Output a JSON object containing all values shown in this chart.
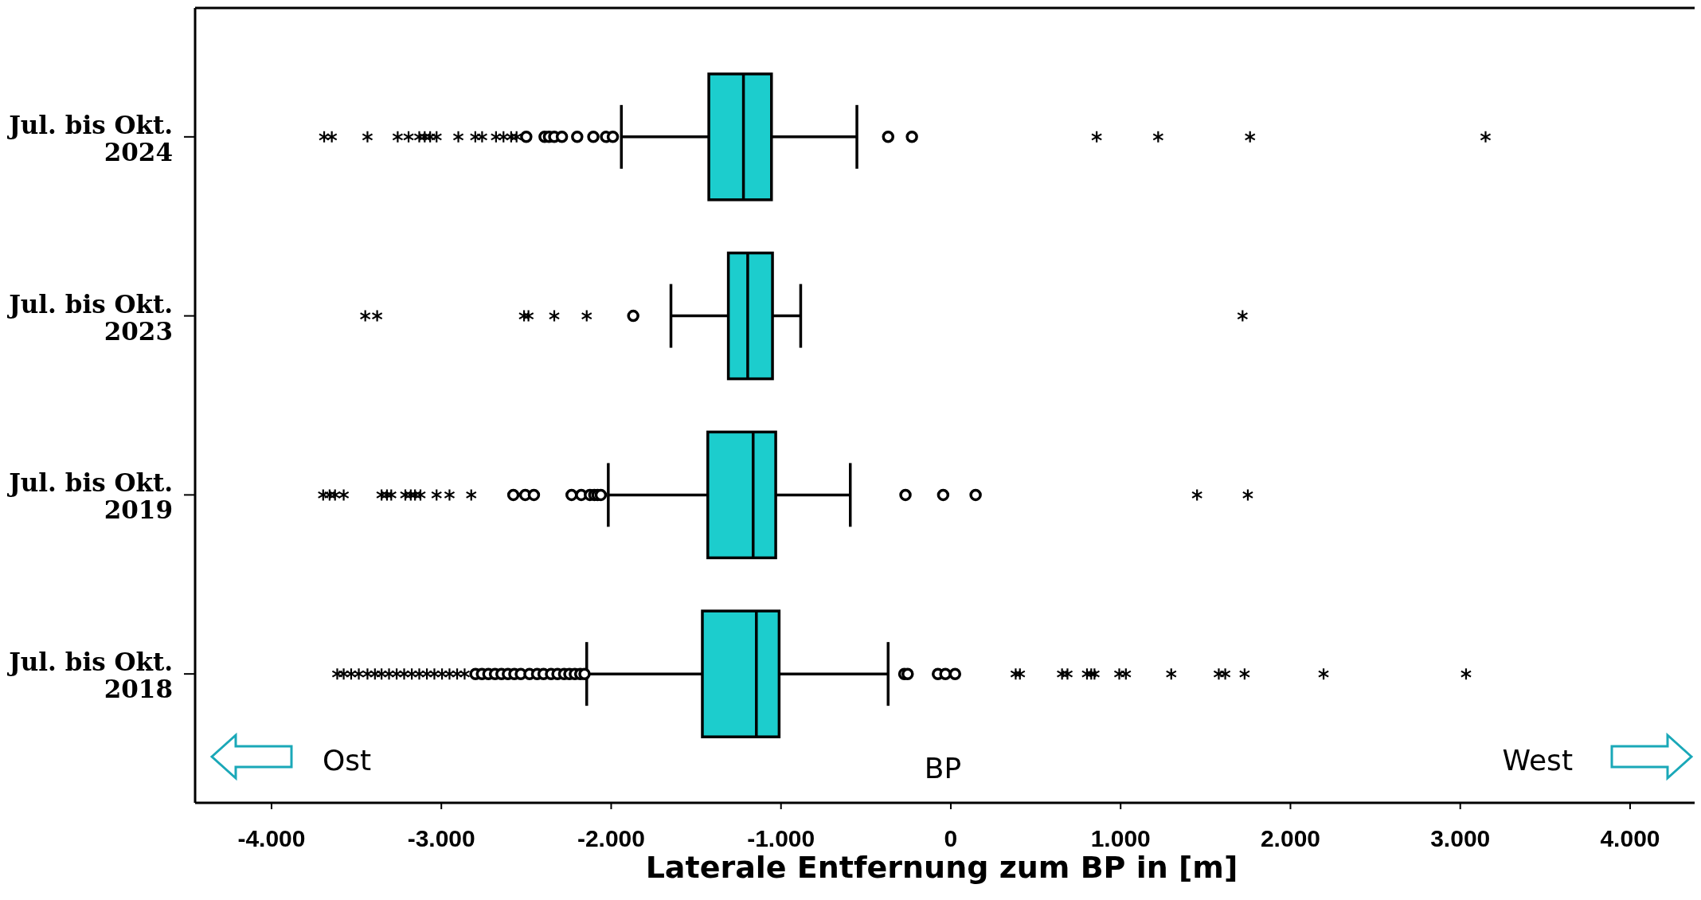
{
  "chart_data": {
    "type": "box",
    "orientation": "horizontal",
    "xlabel": "Laterale Entfernung zum BP in [m]",
    "color": "#1ccdcd",
    "categories": [
      "Jul. bis Okt. 2024",
      "Jul. bis Okt. 2023",
      "Jul. bis Okt. 2019",
      "Jul. bis Okt. 2018"
    ],
    "boxes": [
      {
        "low": -1940,
        "q1": -1425,
        "median": -1221,
        "q3": -1056,
        "high": -553,
        "outliers": [
          -3690,
          -3645,
          -3435,
          -3257,
          -3193,
          -3130,
          -3098,
          -3066,
          -3028,
          -2900,
          -2800,
          -2760,
          -2678,
          -2634,
          -2589,
          -2557,
          -2500,
          -2392,
          -2366,
          -2335,
          -2290,
          -2200,
          -2105,
          -2030,
          -1990,
          -369,
          -229,
          859,
          1221,
          1762,
          3149
        ]
      },
      {
        "low": -1648,
        "q1": -1310,
        "median": -1196,
        "q3": -1050,
        "high": -884,
        "outliers": [
          -3448,
          -3378,
          -2513,
          -2487,
          -2335,
          -2144,
          -1870,
          1718
        ]
      },
      {
        "low": -2017,
        "q1": -1431,
        "median": -1164,
        "q3": -1031,
        "high": -592,
        "outliers": [
          -3696,
          -3658,
          -3626,
          -3575,
          -3352,
          -3320,
          -3295,
          -3212,
          -3180,
          -3155,
          -3123,
          -3028,
          -2952,
          -2824,
          -2576,
          -2506,
          -2455,
          -2233,
          -2176,
          -2125,
          -2099,
          -2080,
          -2061,
          -267,
          -45,
          146,
          1450,
          1749
        ]
      },
      {
        "low": -2144,
        "q1": -1463,
        "median": -1145,
        "q3": -1011,
        "high": -369,
        "outliers": [
          -3613,
          -3575,
          -3531,
          -3486,
          -3435,
          -3391,
          -3352,
          -3308,
          -3263,
          -3219,
          -3174,
          -3130,
          -3085,
          -3041,
          -2996,
          -2952,
          -2907,
          -2863,
          -2799,
          -2761,
          -2723,
          -2684,
          -2646,
          -2608,
          -2570,
          -2532,
          -2481,
          -2436,
          -2398,
          -2354,
          -2316,
          -2277,
          -2246,
          -2214,
          -2182,
          -2157,
          -274,
          -254,
          -76,
          -32,
          25,
          382,
          407,
          655,
          687,
          802,
          827,
          846,
          992,
          1031,
          1298,
          1578,
          1616,
          1730,
          2195,
          3034
        ]
      }
    ],
    "xlim": [
      -4450,
      4380
    ],
    "xticks": [
      {
        "value": -4000,
        "label": "-4.000"
      },
      {
        "value": -3000,
        "label": "-3.000"
      },
      {
        "value": -2000,
        "label": "-2.000"
      },
      {
        "value": -1000,
        "label": "-1.000"
      },
      0,
      {
        "value": 1000,
        "label": "1.000"
      },
      {
        "value": 2000,
        "label": "2.000"
      },
      {
        "value": 3000,
        "label": "3.000"
      },
      {
        "value": 4000,
        "label": "4.000"
      }
    ],
    "annotations": [
      "Ost",
      "BP",
      "West"
    ],
    "grid": false
  }
}
